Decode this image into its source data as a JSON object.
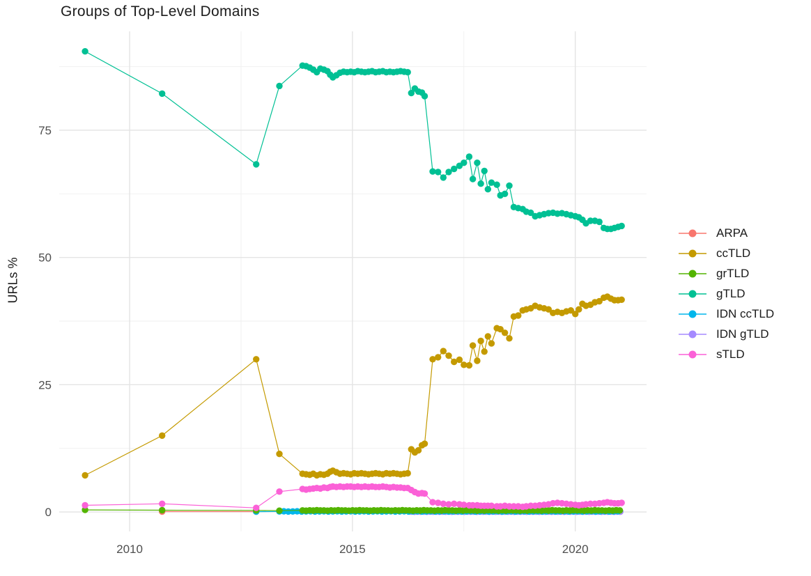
{
  "title": "Groups of Top-Level Domains",
  "chart_data": {
    "type": "line",
    "title": "Groups of Top-Level Domains",
    "xlabel": "",
    "ylabel": "URLs %",
    "x_ticks": [
      2010,
      2015,
      2020
    ],
    "x_minor_gridlines": [
      2012.5,
      2017.5
    ],
    "y_ticks": [
      0,
      25,
      50,
      75
    ],
    "y_minor_gridlines": [
      12.5,
      37.5,
      62.5,
      87.5
    ],
    "xlim": [
      2008.42,
      2021.6
    ],
    "ylim": [
      -3.83,
      94.43
    ],
    "grid": "on",
    "legend_position": "right",
    "marker": "point",
    "draw_order": [
      "ARPA",
      "IDN gTLD",
      "IDN ccTLD",
      "grTLD",
      "sTLD",
      "ccTLD",
      "gTLD"
    ],
    "series": [
      {
        "name": "ARPA",
        "color": "#F8766D",
        "points": [
          [
            2010.73,
            0.07
          ],
          [
            2012.84,
            0.07
          ]
        ]
      },
      {
        "name": "ccTLD",
        "color": "#C49A00",
        "points": [
          [
            2009.0,
            7.2
          ],
          [
            2010.73,
            15.0
          ],
          [
            2012.84,
            30.0
          ],
          [
            2013.36,
            11.4
          ],
          [
            2013.88,
            7.5
          ],
          [
            2013.96,
            7.4
          ],
          [
            2014.04,
            7.3
          ],
          [
            2014.12,
            7.5
          ],
          [
            2014.2,
            7.2
          ],
          [
            2014.28,
            7.4
          ],
          [
            2014.36,
            7.3
          ],
          [
            2014.44,
            7.5
          ],
          [
            2014.5,
            7.9
          ],
          [
            2014.56,
            8.1
          ],
          [
            2014.64,
            7.8
          ],
          [
            2014.72,
            7.5
          ],
          [
            2014.8,
            7.6
          ],
          [
            2014.88,
            7.5
          ],
          [
            2014.96,
            7.4
          ],
          [
            2015.04,
            7.6
          ],
          [
            2015.12,
            7.5
          ],
          [
            2015.2,
            7.6
          ],
          [
            2015.28,
            7.5
          ],
          [
            2015.36,
            7.4
          ],
          [
            2015.44,
            7.5
          ],
          [
            2015.52,
            7.6
          ],
          [
            2015.6,
            7.5
          ],
          [
            2015.68,
            7.4
          ],
          [
            2015.76,
            7.6
          ],
          [
            2015.84,
            7.5
          ],
          [
            2015.92,
            7.6
          ],
          [
            2016.0,
            7.5
          ],
          [
            2016.08,
            7.4
          ],
          [
            2016.16,
            7.5
          ],
          [
            2016.24,
            7.6
          ],
          [
            2016.32,
            12.3
          ],
          [
            2016.4,
            11.7
          ],
          [
            2016.48,
            12.1
          ],
          [
            2016.56,
            13.1
          ],
          [
            2016.62,
            13.4
          ],
          [
            2016.8,
            30.0
          ],
          [
            2016.92,
            30.4
          ],
          [
            2017.04,
            31.6
          ],
          [
            2017.16,
            30.7
          ],
          [
            2017.28,
            29.5
          ],
          [
            2017.4,
            29.9
          ],
          [
            2017.5,
            28.9
          ],
          [
            2017.62,
            28.8
          ],
          [
            2017.7,
            32.7
          ],
          [
            2017.8,
            29.7
          ],
          [
            2017.88,
            33.6
          ],
          [
            2017.96,
            31.5
          ],
          [
            2018.04,
            34.5
          ],
          [
            2018.12,
            33.1
          ],
          [
            2018.24,
            36.1
          ],
          [
            2018.32,
            35.9
          ],
          [
            2018.42,
            35.2
          ],
          [
            2018.52,
            34.1
          ],
          [
            2018.62,
            38.4
          ],
          [
            2018.72,
            38.6
          ],
          [
            2018.82,
            39.6
          ],
          [
            2018.9,
            39.8
          ],
          [
            2019.0,
            40.0
          ],
          [
            2019.1,
            40.5
          ],
          [
            2019.2,
            40.2
          ],
          [
            2019.3,
            40.0
          ],
          [
            2019.4,
            39.8
          ],
          [
            2019.5,
            39.1
          ],
          [
            2019.6,
            39.3
          ],
          [
            2019.7,
            39.1
          ],
          [
            2019.8,
            39.4
          ],
          [
            2019.9,
            39.6
          ],
          [
            2020.0,
            38.9
          ],
          [
            2020.08,
            39.8
          ],
          [
            2020.16,
            40.9
          ],
          [
            2020.24,
            40.5
          ],
          [
            2020.34,
            40.7
          ],
          [
            2020.44,
            41.2
          ],
          [
            2020.54,
            41.4
          ],
          [
            2020.64,
            42.1
          ],
          [
            2020.72,
            42.3
          ],
          [
            2020.8,
            41.9
          ],
          [
            2020.88,
            41.6
          ],
          [
            2020.96,
            41.6
          ],
          [
            2021.04,
            41.7
          ]
        ]
      },
      {
        "name": "grTLD",
        "color": "#53B400",
        "points": [
          [
            2009.0,
            0.4
          ],
          [
            2010.73,
            0.35
          ],
          [
            2012.84,
            0.3
          ],
          [
            2013.36,
            0.25
          ]
        ],
        "dense": {
          "from": 2013.88,
          "to": 2021.04,
          "step": 0.08,
          "values_cycle": [
            0.3,
            0.25,
            0.32,
            0.28,
            0.35,
            0.3
          ]
        }
      },
      {
        "name": "gTLD",
        "color": "#00C094",
        "points": [
          [
            2009.0,
            90.5
          ],
          [
            2010.73,
            82.2
          ],
          [
            2012.84,
            68.3
          ],
          [
            2013.36,
            83.7
          ],
          [
            2013.88,
            87.7
          ],
          [
            2013.96,
            87.6
          ],
          [
            2014.04,
            87.3
          ],
          [
            2014.12,
            86.9
          ],
          [
            2014.2,
            86.4
          ],
          [
            2014.28,
            87.1
          ],
          [
            2014.36,
            86.9
          ],
          [
            2014.44,
            86.6
          ],
          [
            2014.5,
            85.9
          ],
          [
            2014.56,
            85.4
          ],
          [
            2014.64,
            85.8
          ],
          [
            2014.72,
            86.3
          ],
          [
            2014.8,
            86.5
          ],
          [
            2014.88,
            86.4
          ],
          [
            2014.96,
            86.5
          ],
          [
            2015.04,
            86.4
          ],
          [
            2015.12,
            86.6
          ],
          [
            2015.2,
            86.5
          ],
          [
            2015.28,
            86.4
          ],
          [
            2015.36,
            86.5
          ],
          [
            2015.44,
            86.6
          ],
          [
            2015.52,
            86.4
          ],
          [
            2015.6,
            86.5
          ],
          [
            2015.68,
            86.6
          ],
          [
            2015.76,
            86.4
          ],
          [
            2015.84,
            86.5
          ],
          [
            2015.92,
            86.4
          ],
          [
            2016.0,
            86.5
          ],
          [
            2016.08,
            86.6
          ],
          [
            2016.16,
            86.5
          ],
          [
            2016.24,
            86.4
          ],
          [
            2016.32,
            82.3
          ],
          [
            2016.4,
            83.2
          ],
          [
            2016.48,
            82.6
          ],
          [
            2016.56,
            82.4
          ],
          [
            2016.62,
            81.7
          ],
          [
            2016.8,
            66.9
          ],
          [
            2016.92,
            66.8
          ],
          [
            2017.04,
            65.7
          ],
          [
            2017.16,
            66.8
          ],
          [
            2017.28,
            67.4
          ],
          [
            2017.4,
            68.0
          ],
          [
            2017.5,
            68.6
          ],
          [
            2017.62,
            69.8
          ],
          [
            2017.7,
            65.4
          ],
          [
            2017.8,
            68.6
          ],
          [
            2017.88,
            64.5
          ],
          [
            2017.96,
            67.0
          ],
          [
            2018.04,
            63.4
          ],
          [
            2018.12,
            64.7
          ],
          [
            2018.24,
            64.3
          ],
          [
            2018.32,
            62.2
          ],
          [
            2018.42,
            62.5
          ],
          [
            2018.52,
            64.1
          ],
          [
            2018.62,
            59.9
          ],
          [
            2018.72,
            59.7
          ],
          [
            2018.82,
            59.5
          ],
          [
            2018.9,
            59.0
          ],
          [
            2019.0,
            58.8
          ],
          [
            2019.1,
            58.1
          ],
          [
            2019.2,
            58.3
          ],
          [
            2019.3,
            58.5
          ],
          [
            2019.4,
            58.7
          ],
          [
            2019.5,
            58.8
          ],
          [
            2019.6,
            58.6
          ],
          [
            2019.7,
            58.7
          ],
          [
            2019.8,
            58.5
          ],
          [
            2019.9,
            58.3
          ],
          [
            2020.0,
            58.1
          ],
          [
            2020.08,
            57.9
          ],
          [
            2020.16,
            57.4
          ],
          [
            2020.24,
            56.7
          ],
          [
            2020.34,
            57.2
          ],
          [
            2020.44,
            57.2
          ],
          [
            2020.54,
            57.0
          ],
          [
            2020.64,
            55.8
          ],
          [
            2020.72,
            55.6
          ],
          [
            2020.8,
            55.6
          ],
          [
            2020.88,
            55.8
          ],
          [
            2020.96,
            56.0
          ],
          [
            2021.04,
            56.2
          ]
        ]
      },
      {
        "name": "IDN ccTLD",
        "color": "#00B6EB",
        "points": [
          [
            2012.84,
            0.05
          ]
        ],
        "dense": {
          "from": 2013.36,
          "to": 2021.04,
          "step": 0.1,
          "values_cycle": [
            0.1,
            0.12,
            0.08
          ]
        }
      },
      {
        "name": "IDN gTLD",
        "color": "#A58AFF",
        "points": [],
        "dense": {
          "from": 2016.32,
          "to": 2021.04,
          "step": 0.07,
          "values_cycle": [
            0.05,
            0.03,
            0.06,
            0.04
          ]
        }
      },
      {
        "name": "sTLD",
        "color": "#FB61D7",
        "points": [
          [
            2009.0,
            1.3
          ],
          [
            2010.73,
            1.6
          ],
          [
            2012.84,
            0.8
          ],
          [
            2013.36,
            4.0
          ],
          [
            2013.88,
            4.5
          ],
          [
            2013.96,
            4.4
          ],
          [
            2014.04,
            4.5
          ],
          [
            2014.12,
            4.6
          ],
          [
            2014.2,
            4.7
          ],
          [
            2014.28,
            4.6
          ],
          [
            2014.36,
            4.8
          ],
          [
            2014.44,
            4.7
          ],
          [
            2014.5,
            4.9
          ],
          [
            2014.56,
            5.0
          ],
          [
            2014.64,
            4.9
          ],
          [
            2014.72,
            5.0
          ],
          [
            2014.8,
            4.9
          ],
          [
            2014.88,
            5.0
          ],
          [
            2014.96,
            5.0
          ],
          [
            2015.04,
            4.9
          ],
          [
            2015.12,
            5.0
          ],
          [
            2015.2,
            4.9
          ],
          [
            2015.28,
            5.0
          ],
          [
            2015.36,
            4.9
          ],
          [
            2015.44,
            5.0
          ],
          [
            2015.52,
            4.9
          ],
          [
            2015.6,
            4.9
          ],
          [
            2015.68,
            5.0
          ],
          [
            2015.76,
            4.9
          ],
          [
            2015.84,
            4.8
          ],
          [
            2015.92,
            4.9
          ],
          [
            2016.0,
            4.8
          ],
          [
            2016.08,
            4.8
          ],
          [
            2016.16,
            4.7
          ],
          [
            2016.24,
            4.7
          ],
          [
            2016.32,
            4.3
          ],
          [
            2016.4,
            3.9
          ],
          [
            2016.48,
            3.6
          ],
          [
            2016.56,
            3.7
          ],
          [
            2016.62,
            3.6
          ],
          [
            2016.8,
            1.9
          ],
          [
            2016.92,
            1.8
          ],
          [
            2017.04,
            1.6
          ],
          [
            2017.16,
            1.5
          ],
          [
            2017.28,
            1.6
          ],
          [
            2017.4,
            1.5
          ],
          [
            2017.5,
            1.4
          ],
          [
            2017.62,
            1.3
          ],
          [
            2017.7,
            1.3
          ],
          [
            2017.8,
            1.3
          ],
          [
            2017.88,
            1.2
          ],
          [
            2017.96,
            1.2
          ],
          [
            2018.04,
            1.2
          ],
          [
            2018.12,
            1.2
          ],
          [
            2018.24,
            1.1
          ],
          [
            2018.32,
            1.1
          ],
          [
            2018.42,
            1.2
          ],
          [
            2018.52,
            1.1
          ],
          [
            2018.62,
            1.1
          ],
          [
            2018.72,
            1.1
          ],
          [
            2018.82,
            1.0
          ],
          [
            2018.9,
            1.1
          ],
          [
            2019.0,
            1.2
          ],
          [
            2019.1,
            1.2
          ],
          [
            2019.2,
            1.3
          ],
          [
            2019.3,
            1.4
          ],
          [
            2019.4,
            1.5
          ],
          [
            2019.5,
            1.7
          ],
          [
            2019.6,
            1.8
          ],
          [
            2019.7,
            1.7
          ],
          [
            2019.8,
            1.6
          ],
          [
            2019.9,
            1.5
          ],
          [
            2020.0,
            1.4
          ],
          [
            2020.08,
            1.3
          ],
          [
            2020.16,
            1.4
          ],
          [
            2020.24,
            1.5
          ],
          [
            2020.34,
            1.6
          ],
          [
            2020.44,
            1.6
          ],
          [
            2020.54,
            1.7
          ],
          [
            2020.64,
            1.8
          ],
          [
            2020.72,
            1.9
          ],
          [
            2020.8,
            1.8
          ],
          [
            2020.88,
            1.7
          ],
          [
            2020.96,
            1.7
          ],
          [
            2021.04,
            1.8
          ]
        ]
      }
    ]
  },
  "style": {
    "grid_major_color": "#e4e4e4",
    "grid_minor_color": "#efefef",
    "axis_text_color": "#4e4e4e",
    "background": "#ffffff"
  }
}
